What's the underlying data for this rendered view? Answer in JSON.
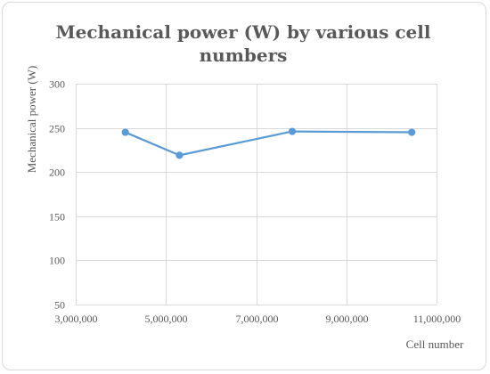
{
  "chart_data": {
    "type": "line",
    "title_lines": [
      "Mechanical power (W) by various cell",
      "numbers"
    ],
    "xlabel": "Cell number",
    "ylabel": "Mechanical power (W)",
    "xlim": [
      3000000,
      11000000
    ],
    "ylim": [
      50,
      300
    ],
    "x_ticks": [
      3000000,
      5000000,
      7000000,
      9000000,
      11000000
    ],
    "x_tick_labels": [
      "3,000,000",
      "5,000,000",
      "7,000,000",
      "9,000,000",
      "11,000,000"
    ],
    "y_ticks": [
      50,
      100,
      150,
      200,
      250,
      300
    ],
    "y_tick_labels": [
      "50",
      "100",
      "150",
      "200",
      "250",
      "300"
    ],
    "grid": true,
    "series": [
      {
        "color": "#5b9bd5",
        "x": [
          4100000,
          5300000,
          7800000,
          10450000
        ],
        "y": [
          245,
          219,
          246,
          245
        ]
      }
    ]
  }
}
